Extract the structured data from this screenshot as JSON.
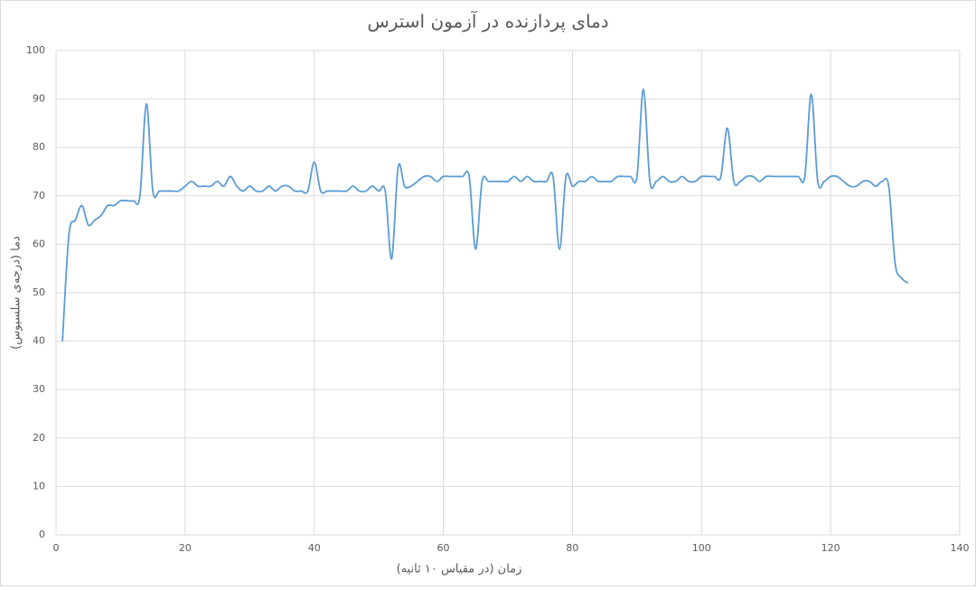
{
  "chart_data": {
    "type": "line",
    "title": "دمای پردازنده در آزمون استرس",
    "x_label": "زمان (در مقیاس ۱۰ ثانیه)",
    "y_label": "دما (درجه‌ی سلسیوس)",
    "xlim": [
      0,
      140
    ],
    "xticks": [
      0,
      20,
      40,
      60,
      80,
      100,
      120,
      140
    ],
    "ylim": [
      0,
      100
    ],
    "yticks": [
      0,
      10,
      20,
      30,
      40,
      50,
      60,
      70,
      80,
      90,
      100
    ],
    "grid": true,
    "smooth": true,
    "x": [
      1,
      2,
      3,
      4,
      5,
      6,
      7,
      8,
      9,
      10,
      11,
      12,
      13,
      14,
      15,
      16,
      17,
      18,
      19,
      20,
      21,
      22,
      23,
      24,
      25,
      26,
      27,
      28,
      29,
      30,
      31,
      32,
      33,
      34,
      35,
      36,
      37,
      38,
      39,
      40,
      41,
      42,
      43,
      44,
      45,
      46,
      47,
      48,
      49,
      50,
      51,
      52,
      53,
      54,
      55,
      56,
      57,
      58,
      59,
      60,
      61,
      62,
      63,
      64,
      65,
      66,
      67,
      68,
      69,
      70,
      71,
      72,
      73,
      74,
      75,
      76,
      77,
      78,
      79,
      80,
      81,
      82,
      83,
      84,
      85,
      86,
      87,
      88,
      89,
      90,
      91,
      92,
      93,
      94,
      95,
      96,
      97,
      98,
      99,
      100,
      101,
      102,
      103,
      104,
      105,
      106,
      107,
      108,
      109,
      110,
      111,
      112,
      113,
      114,
      115,
      116,
      117,
      118,
      119,
      120,
      121,
      122,
      123,
      124,
      125,
      126,
      127,
      128,
      129,
      130,
      131,
      132
    ],
    "series": [
      {
        "color": "#5b9bd5",
        "values": [
          40,
          62,
          65,
          68,
          64,
          65,
          66,
          68,
          68,
          69,
          69,
          69,
          70,
          89,
          71,
          71,
          71,
          71,
          71,
          72,
          73,
          72,
          72,
          72,
          73,
          72,
          74,
          72,
          71,
          72,
          71,
          71,
          72,
          71,
          72,
          72,
          71,
          71,
          71,
          77,
          71,
          71,
          71,
          71,
          71,
          72,
          71,
          71,
          72,
          71,
          71,
          57,
          76,
          72,
          72,
          73,
          74,
          74,
          73,
          74,
          74,
          74,
          74,
          74,
          59,
          73,
          73,
          73,
          73,
          73,
          74,
          73,
          74,
          73,
          73,
          73,
          74,
          59,
          74,
          72,
          73,
          73,
          74,
          73,
          73,
          73,
          74,
          74,
          74,
          74,
          92,
          73,
          73,
          74,
          73,
          73,
          74,
          73,
          73,
          74,
          74,
          74,
          74,
          84,
          73,
          73,
          74,
          74,
          73,
          74,
          74,
          74,
          74,
          74,
          74,
          74,
          91,
          73,
          73,
          74,
          74,
          73,
          72,
          72,
          73,
          73,
          72,
          73,
          72,
          56,
          53,
          52
        ]
      }
    ]
  }
}
